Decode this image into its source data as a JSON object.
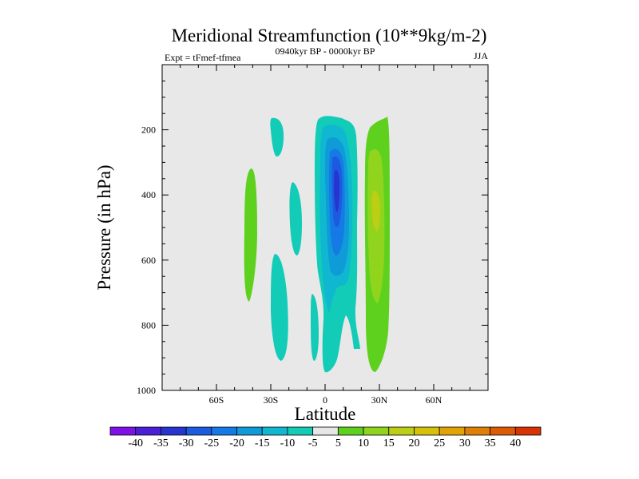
{
  "chart_data": {
    "type": "contour",
    "title": "Meridional Streamfunction (10**9kg/m-2)",
    "left_string": "Expt = tFmef-tfmea",
    "center_string": "0940kyr BP - 0000kyr BP",
    "right_string": "JJA",
    "xlabel": "Latitude",
    "ylabel": "Pressure (in hPa)",
    "xlim": [
      -90,
      90
    ],
    "ylim": [
      1000,
      0
    ],
    "x_ticks": [
      {
        "value": -60,
        "label": "60S"
      },
      {
        "value": -30,
        "label": "30S"
      },
      {
        "value": 0,
        "label": "0"
      },
      {
        "value": 30,
        "label": "30N"
      },
      {
        "value": 60,
        "label": "60N"
      }
    ],
    "y_ticks": [
      {
        "value": 200,
        "label": "200"
      },
      {
        "value": 400,
        "label": "400"
      },
      {
        "value": 600,
        "label": "600"
      },
      {
        "value": 800,
        "label": "800"
      },
      {
        "value": 1000,
        "label": "1000"
      }
    ],
    "background_color": "#e8e8e8",
    "colorbar": {
      "labels": [
        "-40",
        "-35",
        "-30",
        "-25",
        "-20",
        "-15",
        "-10",
        "-5",
        "5",
        "10",
        "15",
        "20",
        "25",
        "30",
        "35",
        "40"
      ],
      "colors": [
        "#7f11e8",
        "#4b1fd6",
        "#2735d0",
        "#1c5ae0",
        "#157ae6",
        "#0f9ad8",
        "#0fb7d0",
        "#12ccb8",
        "#e6e6e6",
        "#5ed11f",
        "#90d41e",
        "#bccf14",
        "#d6c10a",
        "#e2a307",
        "#e07f06",
        "#dd5a06",
        "#d93305"
      ]
    },
    "regions": [
      {
        "name": "deep-negative-core",
        "level": -30,
        "center": [
          7,
          370
        ],
        "color": "#2735d0"
      },
      {
        "name": "strong-negative-cell",
        "level": -25,
        "center": [
          6,
          410
        ],
        "color": "#1c5ae0"
      },
      {
        "name": "negative-cell-mid",
        "level": -20,
        "center": [
          6,
          450
        ],
        "color": "#157ae6"
      },
      {
        "name": "negative-cell-outer",
        "level": -15,
        "center": [
          6,
          480
        ],
        "color": "#0f9ad8"
      },
      {
        "name": "negative-cell-edge",
        "level": -10,
        "center": [
          5,
          520
        ],
        "color": "#0fb7d0"
      },
      {
        "name": "positive-cell-core",
        "level": 15,
        "center": [
          28,
          430
        ],
        "color": "#bccf14"
      },
      {
        "name": "positive-cell-mid",
        "level": 10,
        "center": [
          28,
          470
        ],
        "color": "#90d41e"
      },
      {
        "name": "positive-cell-outer",
        "level": 5,
        "center": [
          30,
          530
        ],
        "color": "#5ed11f"
      },
      {
        "name": "southern-positive-cell",
        "level": 5,
        "center": [
          -42,
          520
        ],
        "color": "#5ed11f"
      }
    ]
  }
}
